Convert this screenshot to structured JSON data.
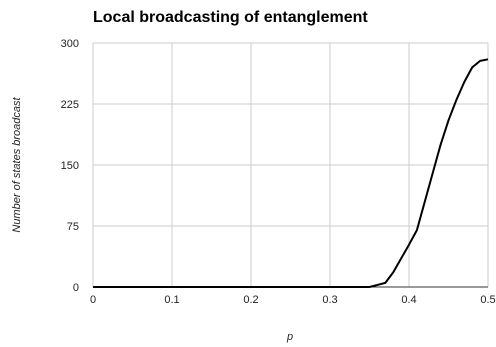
{
  "chart_data": {
    "type": "line",
    "title": "Local broadcasting of entanglement",
    "xlabel": "p",
    "ylabel": "Number of states broadcast",
    "xlim": [
      0,
      0.5
    ],
    "ylim": [
      0,
      300
    ],
    "x_ticks": [
      "0",
      "0.1",
      "0.2",
      "0.3",
      "0.4",
      "0.5"
    ],
    "y_ticks": [
      "0",
      "75",
      "150",
      "225",
      "300"
    ],
    "grid": true,
    "legend": "none",
    "series": [
      {
        "color": "#000000",
        "points": [
          [
            0,
            0
          ],
          [
            0.35,
            0
          ],
          [
            0.37,
            5
          ],
          [
            0.38,
            18
          ],
          [
            0.39,
            35
          ],
          [
            0.4,
            52
          ],
          [
            0.41,
            70
          ],
          [
            0.42,
            105
          ],
          [
            0.43,
            140
          ],
          [
            0.44,
            175
          ],
          [
            0.45,
            205
          ],
          [
            0.46,
            230
          ],
          [
            0.47,
            252
          ],
          [
            0.48,
            270
          ],
          [
            0.49,
            278
          ],
          [
            0.5,
            280
          ]
        ]
      }
    ]
  }
}
